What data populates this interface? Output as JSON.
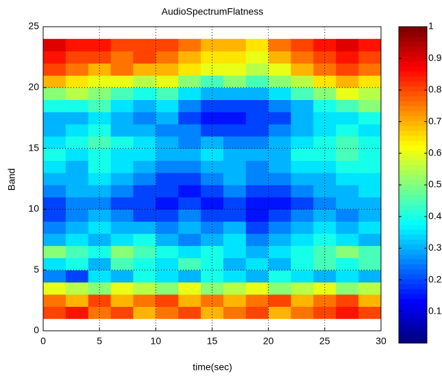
{
  "chart_data": {
    "type": "heatmap",
    "title": "AudioSpectrumFlatness",
    "xlabel": "time(sec)",
    "ylabel": "Band",
    "x": [
      1,
      3,
      5,
      7,
      9,
      11,
      13,
      15,
      17,
      19,
      21,
      23,
      25,
      27,
      29
    ],
    "y": [
      1,
      2,
      3,
      4,
      5,
      6,
      7,
      8,
      9,
      10,
      11,
      12,
      13,
      14,
      15,
      16,
      17,
      18,
      19,
      20,
      21,
      22,
      23
    ],
    "z": [
      [
        0.8,
        0.85,
        0.75,
        0.8,
        0.7,
        0.75,
        0.8,
        0.7,
        0.75,
        0.8,
        0.7,
        0.75,
        0.8,
        0.85,
        0.8
      ],
      [
        0.75,
        0.7,
        0.8,
        0.7,
        0.75,
        0.8,
        0.7,
        0.75,
        0.7,
        0.75,
        0.8,
        0.7,
        0.75,
        0.8,
        0.7
      ],
      [
        0.6,
        0.55,
        0.5,
        0.6,
        0.55,
        0.5,
        0.6,
        0.5,
        0.55,
        0.6,
        0.5,
        0.55,
        0.6,
        0.5,
        0.55
      ],
      [
        0.25,
        0.2,
        0.35,
        0.3,
        0.4,
        0.35,
        0.3,
        0.4,
        0.35,
        0.3,
        0.4,
        0.35,
        0.3,
        0.35,
        0.3
      ],
      [
        0.35,
        0.4,
        0.3,
        0.45,
        0.4,
        0.35,
        0.45,
        0.4,
        0.3,
        0.35,
        0.3,
        0.4,
        0.45,
        0.4,
        0.45
      ],
      [
        0.5,
        0.45,
        0.4,
        0.5,
        0.45,
        0.4,
        0.35,
        0.4,
        0.35,
        0.3,
        0.35,
        0.4,
        0.45,
        0.5,
        0.45
      ],
      [
        0.3,
        0.35,
        0.3,
        0.35,
        0.4,
        0.3,
        0.25,
        0.3,
        0.35,
        0.25,
        0.3,
        0.35,
        0.4,
        0.35,
        0.3
      ],
      [
        0.25,
        0.3,
        0.35,
        0.3,
        0.3,
        0.25,
        0.3,
        0.25,
        0.3,
        0.2,
        0.25,
        0.3,
        0.35,
        0.3,
        0.35
      ],
      [
        0.2,
        0.25,
        0.3,
        0.25,
        0.2,
        0.2,
        0.25,
        0.2,
        0.2,
        0.15,
        0.2,
        0.25,
        0.3,
        0.25,
        0.3
      ],
      [
        0.2,
        0.25,
        0.25,
        0.2,
        0.2,
        0.15,
        0.2,
        0.15,
        0.2,
        0.15,
        0.15,
        0.2,
        0.25,
        0.3,
        0.3
      ],
      [
        0.25,
        0.3,
        0.3,
        0.25,
        0.2,
        0.2,
        0.15,
        0.2,
        0.25,
        0.2,
        0.2,
        0.25,
        0.3,
        0.3,
        0.35
      ],
      [
        0.3,
        0.3,
        0.35,
        0.3,
        0.25,
        0.2,
        0.2,
        0.25,
        0.3,
        0.25,
        0.25,
        0.3,
        0.3,
        0.35,
        0.35
      ],
      [
        0.35,
        0.3,
        0.4,
        0.35,
        0.3,
        0.25,
        0.25,
        0.3,
        0.3,
        0.25,
        0.3,
        0.35,
        0.35,
        0.4,
        0.4
      ],
      [
        0.4,
        0.35,
        0.4,
        0.35,
        0.35,
        0.3,
        0.3,
        0.35,
        0.3,
        0.3,
        0.3,
        0.4,
        0.4,
        0.45,
        0.4
      ],
      [
        0.35,
        0.4,
        0.45,
        0.4,
        0.35,
        0.3,
        0.25,
        0.3,
        0.25,
        0.25,
        0.3,
        0.35,
        0.4,
        0.45,
        0.4
      ],
      [
        0.3,
        0.35,
        0.4,
        0.3,
        0.3,
        0.25,
        0.25,
        0.2,
        0.2,
        0.2,
        0.25,
        0.3,
        0.35,
        0.4,
        0.35
      ],
      [
        0.3,
        0.3,
        0.35,
        0.3,
        0.25,
        0.3,
        0.2,
        0.15,
        0.15,
        0.2,
        0.2,
        0.3,
        0.35,
        0.35,
        0.4
      ],
      [
        0.4,
        0.4,
        0.45,
        0.35,
        0.3,
        0.35,
        0.25,
        0.2,
        0.2,
        0.2,
        0.25,
        0.3,
        0.4,
        0.45,
        0.5
      ],
      [
        0.5,
        0.55,
        0.5,
        0.45,
        0.4,
        0.45,
        0.35,
        0.3,
        0.3,
        0.3,
        0.35,
        0.45,
        0.5,
        0.6,
        0.55
      ],
      [
        0.7,
        0.65,
        0.6,
        0.6,
        0.55,
        0.6,
        0.5,
        0.45,
        0.5,
        0.45,
        0.5,
        0.55,
        0.65,
        0.7,
        0.65
      ],
      [
        0.8,
        0.75,
        0.7,
        0.75,
        0.7,
        0.7,
        0.65,
        0.6,
        0.6,
        0.55,
        0.6,
        0.7,
        0.75,
        0.8,
        0.75
      ],
      [
        0.85,
        0.8,
        0.8,
        0.75,
        0.8,
        0.75,
        0.7,
        0.65,
        0.65,
        0.6,
        0.7,
        0.75,
        0.8,
        0.85,
        0.8
      ],
      [
        0.9,
        0.85,
        0.85,
        0.8,
        0.8,
        0.8,
        0.75,
        0.7,
        0.7,
        0.65,
        0.75,
        0.8,
        0.85,
        0.9,
        0.85
      ]
    ],
    "xlim": [
      0,
      30
    ],
    "xticks": [
      0,
      5,
      10,
      15,
      20,
      25,
      30
    ],
    "ylim": [
      0,
      25
    ],
    "yticks": [
      0,
      5,
      10,
      15,
      20,
      25
    ],
    "clim": [
      0,
      1
    ],
    "cticks": [
      0.1,
      0.2,
      0.3,
      0.4,
      0.5,
      0.6,
      0.7,
      0.8,
      0.9,
      1
    ],
    "colormap": "jet",
    "grid": true
  }
}
